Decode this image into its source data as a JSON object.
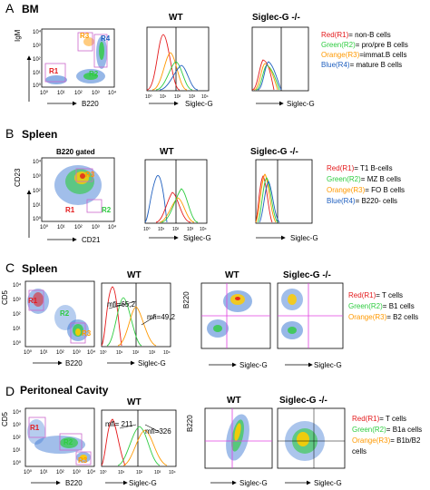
{
  "colors": {
    "red": "#e41a1c",
    "green": "#2ecc40",
    "orange": "#ff9900",
    "blue": "#1f5fbf",
    "gate": "#cc66cc",
    "quad": "#e040e0"
  },
  "panels": {
    "A": {
      "letter": "A",
      "title": "BM",
      "dot": {
        "ylabel": "IgM",
        "xlabel": "B220",
        "gates": [
          "R1",
          "R2",
          "R3",
          "R4"
        ]
      },
      "hist_wt": {
        "title": "WT",
        "xlabel": "Siglec-G"
      },
      "hist_ko": {
        "title": "Siglec-G -/-",
        "xlabel": "Siglec-G"
      },
      "legend": [
        {
          "color": "Red",
          "gate": "(R1)",
          "desc": "= non-B cells"
        },
        {
          "color": "Green",
          "gate": "(R2)",
          "desc": "= pro/pre B cells"
        },
        {
          "color": "Orange",
          "gate": "(R3)",
          "desc": "=immat.B cells"
        },
        {
          "color": "Blue",
          "gate": "(R4)",
          "desc": "= mature B cells"
        }
      ]
    },
    "B": {
      "letter": "B",
      "title": "Spleen",
      "dot": {
        "subtitle": "B220 gated",
        "ylabel": "CD23",
        "xlabel": "CD21",
        "gates": [
          "R1",
          "R2",
          "R3"
        ]
      },
      "hist_wt": {
        "title": "WT",
        "xlabel": "Siglec-G"
      },
      "hist_ko": {
        "title": "Siglec-G -/-",
        "xlabel": "Siglec-G"
      },
      "legend": [
        {
          "color": "Red",
          "gate": "(R1)",
          "desc": "= T1 B-cells"
        },
        {
          "color": "Green",
          "gate": "(R2)",
          "desc": "= MZ B cells"
        },
        {
          "color": "Orange",
          "gate": "(R3)",
          "desc": "= FO B cells"
        },
        {
          "color": "Blue",
          "gate": "(R4)",
          "desc": "= B220- cells"
        }
      ]
    },
    "C": {
      "letter": "C",
      "title": "Spleen",
      "dot": {
        "ylabel": "CD5",
        "xlabel": "B220",
        "gates": [
          "R1",
          "R2",
          "R3"
        ]
      },
      "hist": {
        "title": "WT",
        "xlabel": "Siglec-G",
        "mfi_left": "mfi=65,2",
        "mfi_right": "mfi=49,2"
      },
      "quad_wt": {
        "title": "WT",
        "ylabel": "B220",
        "xlabel": "Siglec-G"
      },
      "quad_ko": {
        "title": "Siglec-G -/-",
        "xlabel": "Siglec-G"
      },
      "legend": [
        {
          "color": "Red",
          "gate": "(R1)",
          "desc": "= T cells"
        },
        {
          "color": "Green",
          "gate": "(R2)",
          "desc": "= B1 cells"
        },
        {
          "color": "Orange",
          "gate": "(R3)",
          "desc": "= B2 cells"
        }
      ]
    },
    "D": {
      "letter": "D",
      "title": "Peritoneal Cavity",
      "dot": {
        "ylabel": "CD5",
        "xlabel": "B220",
        "gates": [
          "R1",
          "R2",
          "R3"
        ]
      },
      "hist": {
        "title": "WT",
        "xlabel": "Siglec-G",
        "mfi_left": "mfi= 211",
        "mfi_right": "mfi=326"
      },
      "quad_wt": {
        "title": "WT",
        "ylabel": "B220",
        "xlabel": "Siglec-G"
      },
      "quad_ko": {
        "title": "Siglec-G -/-",
        "xlabel": "Siglec-G"
      },
      "legend": [
        {
          "color": "Red",
          "gate": "(R1)",
          "desc": "= T cells"
        },
        {
          "color": "Green",
          "gate": "(R2)",
          "desc": "= B1a cells"
        },
        {
          "color": "Orange",
          "gate": "(R3)",
          "desc": "= B1b/B2"
        },
        {
          "color": "",
          "gate": "",
          "desc": "cells"
        }
      ]
    }
  },
  "ticks": {
    "dot_y": [
      "10⁴",
      "10³",
      "10²",
      "10¹",
      "10⁰"
    ],
    "dot_x": [
      "10⁰",
      "10¹",
      "10²",
      "10³",
      "10⁴"
    ],
    "hist_x": [
      "10⁰",
      "10¹",
      "10²",
      "10³",
      "10⁴"
    ]
  }
}
